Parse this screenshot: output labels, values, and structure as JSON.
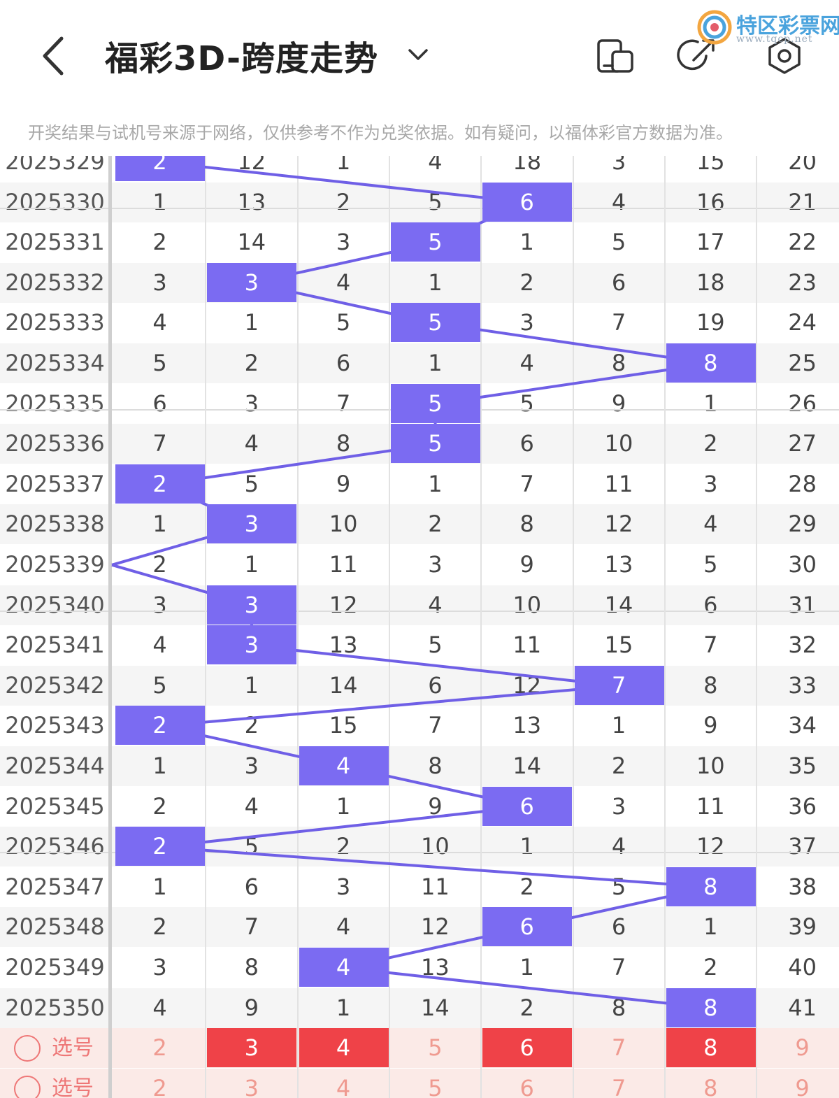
{
  "header": {
    "title": "福彩3D-跨度走势",
    "icons": [
      "back-arrow-icon",
      "chevron-down-icon",
      "layout-toggle-icon",
      "share-icon",
      "settings-icon"
    ]
  },
  "logo": {
    "name": "特区彩票网",
    "url": "www.tqcp.net"
  },
  "notice": "开奖结果与试机号来源于网络，仅供参考不作为兑奖依据。如有疑问，以福体彩官方数据为准。",
  "colors": {
    "hit": "#7b6bf2",
    "line": "#6f5fe6",
    "selected": "#ef4248",
    "select_text": "#ef9a90"
  },
  "columns": [
    "2",
    "3",
    "4",
    "5",
    "6",
    "7",
    "8",
    "9"
  ],
  "rows": [
    {
      "issue": "2025329",
      "cells": [
        "2",
        "12",
        "1",
        "4",
        "18",
        "3",
        "15",
        "20"
      ],
      "hit": 0
    },
    {
      "issue": "2025330",
      "cells": [
        "1",
        "13",
        "2",
        "5",
        "6",
        "4",
        "16",
        "21"
      ],
      "hit": 4
    },
    {
      "issue": "2025331",
      "cells": [
        "2",
        "14",
        "3",
        "5",
        "1",
        "5",
        "17",
        "22"
      ],
      "hit": 3
    },
    {
      "issue": "2025332",
      "cells": [
        "3",
        "3",
        "4",
        "1",
        "2",
        "6",
        "18",
        "23"
      ],
      "hit": 1
    },
    {
      "issue": "2025333",
      "cells": [
        "4",
        "1",
        "5",
        "5",
        "3",
        "7",
        "19",
        "24"
      ],
      "hit": 3
    },
    {
      "issue": "2025334",
      "cells": [
        "5",
        "2",
        "6",
        "1",
        "4",
        "8",
        "8",
        "25"
      ],
      "hit": 6
    },
    {
      "issue": "2025335",
      "cells": [
        "6",
        "3",
        "7",
        "5",
        "5",
        "9",
        "1",
        "26"
      ],
      "hit": 3
    },
    {
      "issue": "2025336",
      "cells": [
        "7",
        "4",
        "8",
        "5",
        "6",
        "10",
        "2",
        "27"
      ],
      "hit": 3
    },
    {
      "issue": "2025337",
      "cells": [
        "2",
        "5",
        "9",
        "1",
        "7",
        "11",
        "3",
        "28"
      ],
      "hit": 0
    },
    {
      "issue": "2025338",
      "cells": [
        "1",
        "3",
        "10",
        "2",
        "8",
        "12",
        "4",
        "29"
      ],
      "hit": 1
    },
    {
      "issue": "2025339",
      "cells": [
        "2",
        "1",
        "11",
        "3",
        "9",
        "13",
        "5",
        "30"
      ],
      "hit": -1
    },
    {
      "issue": "2025340",
      "cells": [
        "3",
        "3",
        "12",
        "4",
        "10",
        "14",
        "6",
        "31"
      ],
      "hit": 1
    },
    {
      "issue": "2025341",
      "cells": [
        "4",
        "3",
        "13",
        "5",
        "11",
        "15",
        "7",
        "32"
      ],
      "hit": 1
    },
    {
      "issue": "2025342",
      "cells": [
        "5",
        "1",
        "14",
        "6",
        "12",
        "7",
        "8",
        "33"
      ],
      "hit": 5
    },
    {
      "issue": "2025343",
      "cells": [
        "2",
        "2",
        "15",
        "7",
        "13",
        "1",
        "9",
        "34"
      ],
      "hit": 0
    },
    {
      "issue": "2025344",
      "cells": [
        "1",
        "3",
        "4",
        "8",
        "14",
        "2",
        "10",
        "35"
      ],
      "hit": 2
    },
    {
      "issue": "2025345",
      "cells": [
        "2",
        "4",
        "1",
        "9",
        "6",
        "3",
        "11",
        "36"
      ],
      "hit": 4
    },
    {
      "issue": "2025346",
      "cells": [
        "2",
        "5",
        "2",
        "10",
        "1",
        "4",
        "12",
        "37"
      ],
      "hit": 0
    },
    {
      "issue": "2025347",
      "cells": [
        "1",
        "6",
        "3",
        "11",
        "2",
        "5",
        "8",
        "38"
      ],
      "hit": 6
    },
    {
      "issue": "2025348",
      "cells": [
        "2",
        "7",
        "4",
        "12",
        "6",
        "6",
        "1",
        "39"
      ],
      "hit": 4
    },
    {
      "issue": "2025349",
      "cells": [
        "3",
        "8",
        "4",
        "13",
        "1",
        "7",
        "2",
        "40"
      ],
      "hit": 2
    },
    {
      "issue": "2025350",
      "cells": [
        "4",
        "9",
        "1",
        "14",
        "2",
        "8",
        "8",
        "41"
      ],
      "hit": 6
    }
  ],
  "select_rows": [
    {
      "label": "选号",
      "selected": [
        false,
        true,
        true,
        false,
        true,
        false,
        true,
        false
      ]
    },
    {
      "label": "选号",
      "selected": [
        false,
        false,
        false,
        false,
        false,
        false,
        false,
        false
      ]
    }
  ]
}
